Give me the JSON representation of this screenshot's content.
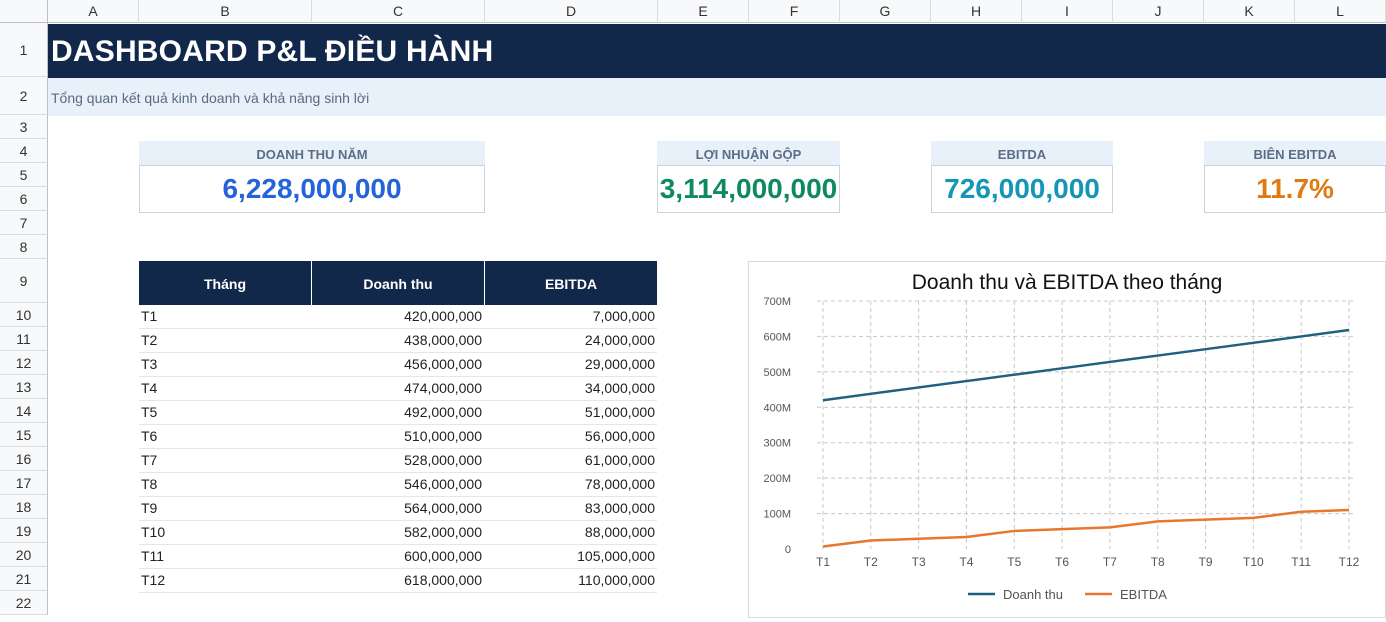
{
  "columns": [
    "A",
    "B",
    "C",
    "D",
    "E",
    "F",
    "G",
    "H",
    "I",
    "J",
    "K",
    "L"
  ],
  "rows": [
    "1",
    "2",
    "3",
    "4",
    "5",
    "6",
    "7",
    "8",
    "9",
    "10",
    "11",
    "12",
    "13",
    "14",
    "15",
    "16",
    "17",
    "18",
    "19",
    "20",
    "21",
    "22"
  ],
  "title": "DASHBOARD P&L ĐIỀU HÀNH",
  "subtitle": "Tổng quan kết quả kinh doanh và khả năng sinh lời",
  "kpis": [
    {
      "label": "DOANH THU NĂM",
      "value": "6,228,000,000",
      "color": "#2563d9"
    },
    {
      "label": "LỢI NHUẬN GỘP",
      "value": "3,114,000,000",
      "color": "#0f8a5f"
    },
    {
      "label": "EBITDA",
      "value": "726,000,000",
      "color": "#1596b5"
    },
    {
      "label": "BIÊN EBITDA",
      "value": "11.7%",
      "color": "#e07a12"
    }
  ],
  "table": {
    "headers": [
      "Tháng",
      "Doanh thu",
      "EBITDA"
    ],
    "rows": [
      [
        "T1",
        "420,000,000",
        "7,000,000"
      ],
      [
        "T2",
        "438,000,000",
        "24,000,000"
      ],
      [
        "T3",
        "456,000,000",
        "29,000,000"
      ],
      [
        "T4",
        "474,000,000",
        "34,000,000"
      ],
      [
        "T5",
        "492,000,000",
        "51,000,000"
      ],
      [
        "T6",
        "510,000,000",
        "56,000,000"
      ],
      [
        "T7",
        "528,000,000",
        "61,000,000"
      ],
      [
        "T8",
        "546,000,000",
        "78,000,000"
      ],
      [
        "T9",
        "564,000,000",
        "83,000,000"
      ],
      [
        "T10",
        "582,000,000",
        "88,000,000"
      ],
      [
        "T11",
        "600,000,000",
        "105,000,000"
      ],
      [
        "T12",
        "618,000,000",
        "110,000,000"
      ]
    ]
  },
  "chart_data": {
    "type": "line",
    "title": "Doanh thu và EBITDA theo tháng",
    "xlabel": "",
    "ylabel": "",
    "categories": [
      "T1",
      "T2",
      "T3",
      "T4",
      "T5",
      "T6",
      "T7",
      "T8",
      "T9",
      "T10",
      "T11",
      "T12"
    ],
    "ylim": [
      0,
      700000000
    ],
    "yticks": [
      0,
      100000000,
      200000000,
      300000000,
      400000000,
      500000000,
      600000000,
      700000000
    ],
    "ytick_labels": [
      "0",
      "100M",
      "200M",
      "300M",
      "400M",
      "500M",
      "600M",
      "700M"
    ],
    "grid": true,
    "legend": "bottom",
    "series": [
      {
        "name": "Doanh thu",
        "color": "#1f5f7f",
        "values": [
          420000000,
          438000000,
          456000000,
          474000000,
          492000000,
          510000000,
          528000000,
          546000000,
          564000000,
          582000000,
          600000000,
          618000000
        ]
      },
      {
        "name": "EBITDA",
        "color": "#e8772e",
        "values": [
          7000000,
          24000000,
          29000000,
          34000000,
          51000000,
          56000000,
          61000000,
          78000000,
          83000000,
          88000000,
          105000000,
          110000000
        ]
      }
    ]
  }
}
